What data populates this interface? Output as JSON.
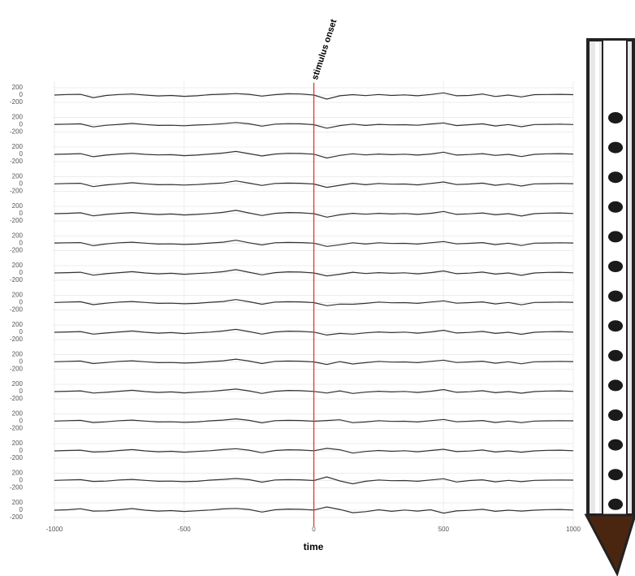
{
  "chart_data": {
    "type": "line",
    "x": [
      -1000,
      -950,
      -900,
      -850,
      -800,
      -750,
      -700,
      -650,
      -600,
      -550,
      -500,
      -450,
      -400,
      -350,
      -300,
      -250,
      -200,
      -150,
      -100,
      -50,
      0,
      50,
      100,
      150,
      200,
      250,
      300,
      350,
      400,
      450,
      500,
      550,
      600,
      650,
      700,
      750,
      800,
      850,
      900,
      950,
      1000
    ],
    "color": "#333333",
    "series": [
      {
        "values": [
          0,
          15,
          20,
          -70,
          -10,
          15,
          30,
          0,
          -25,
          -10,
          -35,
          -20,
          10,
          25,
          40,
          20,
          -30,
          10,
          35,
          30,
          0,
          -110,
          -20,
          10,
          -15,
          15,
          -10,
          5,
          -20,
          15,
          60,
          -20,
          -10,
          30,
          -40,
          0,
          -50,
          10,
          15,
          20,
          10
        ]
      },
      {
        "values": [
          10,
          15,
          25,
          -60,
          -15,
          10,
          35,
          5,
          -20,
          -15,
          -30,
          -10,
          5,
          30,
          60,
          25,
          -40,
          15,
          30,
          25,
          0,
          -95,
          -25,
          15,
          -20,
          10,
          -5,
          0,
          -15,
          20,
          50,
          -25,
          0,
          25,
          -35,
          5,
          -55,
          5,
          10,
          15,
          5
        ]
      },
      {
        "values": [
          0,
          10,
          20,
          -65,
          -20,
          10,
          30,
          0,
          -15,
          -10,
          -35,
          -20,
          10,
          35,
          80,
          20,
          -45,
          10,
          30,
          25,
          5,
          -100,
          -30,
          15,
          -15,
          10,
          -10,
          5,
          -20,
          10,
          60,
          -20,
          -5,
          20,
          -30,
          0,
          -60,
          0,
          15,
          20,
          10
        ]
      },
      {
        "values": [
          5,
          15,
          20,
          -70,
          -25,
          5,
          35,
          5,
          -20,
          -15,
          -30,
          -15,
          10,
          30,
          85,
          25,
          -40,
          15,
          25,
          20,
          0,
          -90,
          -35,
          20,
          -20,
          15,
          -5,
          0,
          -25,
          15,
          55,
          -15,
          0,
          25,
          -35,
          5,
          -55,
          5,
          10,
          15,
          10
        ]
      },
      {
        "values": [
          0,
          10,
          25,
          -60,
          -20,
          10,
          30,
          0,
          -25,
          -10,
          -35,
          -20,
          5,
          35,
          90,
          20,
          -50,
          10,
          30,
          25,
          0,
          -95,
          -30,
          10,
          -15,
          10,
          -10,
          5,
          -20,
          10,
          60,
          -20,
          -5,
          20,
          -30,
          0,
          -65,
          0,
          15,
          20,
          5
        ]
      },
      {
        "values": [
          10,
          15,
          20,
          -65,
          -15,
          15,
          30,
          5,
          -20,
          -15,
          -30,
          -20,
          10,
          30,
          85,
          15,
          -45,
          15,
          25,
          20,
          5,
          -85,
          -40,
          15,
          -20,
          15,
          -5,
          0,
          -20,
          15,
          50,
          -15,
          0,
          20,
          -35,
          5,
          -60,
          5,
          10,
          15,
          10
        ]
      },
      {
        "values": [
          0,
          10,
          20,
          -60,
          -20,
          10,
          35,
          0,
          -25,
          -10,
          -35,
          -15,
          5,
          35,
          90,
          20,
          -50,
          10,
          30,
          25,
          0,
          -80,
          -35,
          20,
          -15,
          10,
          -10,
          5,
          -25,
          10,
          55,
          -20,
          -5,
          25,
          -30,
          0,
          -65,
          0,
          15,
          20,
          5
        ]
      },
      {
        "values": [
          5,
          15,
          25,
          -55,
          -15,
          15,
          30,
          5,
          -20,
          -15,
          -30,
          -20,
          10,
          30,
          85,
          25,
          -45,
          15,
          25,
          20,
          0,
          -85,
          -40,
          -45,
          -20,
          15,
          -5,
          0,
          -20,
          15,
          50,
          -15,
          0,
          20,
          -35,
          5,
          -60,
          5,
          10,
          15,
          10
        ]
      },
      {
        "values": [
          0,
          10,
          20,
          -50,
          -20,
          10,
          35,
          0,
          -25,
          -10,
          -35,
          -15,
          5,
          35,
          80,
          20,
          -50,
          10,
          30,
          25,
          5,
          -75,
          -30,
          -50,
          -15,
          10,
          -10,
          5,
          -25,
          10,
          55,
          -20,
          -5,
          25,
          -30,
          0,
          -55,
          0,
          15,
          20,
          5
        ]
      },
      {
        "values": [
          5,
          15,
          25,
          -45,
          -15,
          15,
          30,
          5,
          -20,
          -15,
          -30,
          -20,
          10,
          30,
          75,
          25,
          -45,
          15,
          25,
          20,
          0,
          -70,
          10,
          -55,
          -20,
          15,
          -5,
          0,
          -20,
          15,
          50,
          -15,
          0,
          20,
          -35,
          5,
          -50,
          5,
          10,
          15,
          10
        ]
      },
      {
        "values": [
          0,
          10,
          20,
          -40,
          -20,
          10,
          35,
          0,
          -25,
          -10,
          -35,
          -15,
          5,
          35,
          70,
          20,
          -50,
          10,
          30,
          25,
          5,
          -40,
          20,
          -50,
          -15,
          10,
          -10,
          5,
          -25,
          10,
          55,
          -20,
          -5,
          25,
          -30,
          0,
          -45,
          0,
          15,
          20,
          5
        ]
      },
      {
        "values": [
          5,
          15,
          25,
          -35,
          -15,
          15,
          30,
          5,
          -20,
          -15,
          -30,
          -20,
          10,
          30,
          65,
          25,
          -45,
          15,
          25,
          20,
          0,
          20,
          40,
          -40,
          -20,
          15,
          -5,
          0,
          -20,
          15,
          50,
          -15,
          0,
          20,
          -35,
          5,
          -40,
          5,
          10,
          15,
          10
        ]
      },
      {
        "values": [
          0,
          10,
          20,
          -30,
          -20,
          10,
          35,
          0,
          -25,
          -10,
          -35,
          -15,
          5,
          35,
          60,
          20,
          -50,
          10,
          30,
          25,
          5,
          70,
          30,
          -60,
          -15,
          10,
          -10,
          5,
          -25,
          10,
          45,
          -20,
          -5,
          25,
          -30,
          0,
          -35,
          0,
          15,
          20,
          5
        ]
      },
      {
        "values": [
          5,
          15,
          25,
          -25,
          -15,
          15,
          30,
          5,
          -20,
          -15,
          -30,
          -20,
          10,
          30,
          55,
          25,
          -45,
          15,
          25,
          20,
          0,
          100,
          -10,
          -90,
          -20,
          15,
          -5,
          0,
          -20,
          15,
          50,
          -40,
          0,
          20,
          -35,
          5,
          -30,
          5,
          10,
          15,
          10
        ]
      },
      {
        "values": [
          0,
          10,
          40,
          -25,
          -20,
          10,
          45,
          0,
          -25,
          -10,
          -35,
          -15,
          5,
          35,
          50,
          20,
          -50,
          10,
          30,
          25,
          5,
          90,
          20,
          -70,
          -40,
          10,
          -30,
          5,
          -25,
          10,
          -80,
          -20,
          -5,
          25,
          -30,
          0,
          -25,
          0,
          15,
          20,
          5
        ]
      }
    ],
    "ylim": [
      -350,
      350
    ],
    "yticks": [
      200,
      0,
      -200
    ],
    "xlim": [
      -1000,
      1000
    ],
    "xticks": [
      -1000,
      -500,
      0,
      500,
      1000
    ],
    "xlabel": "time",
    "annotation": {
      "x": 0,
      "text": "stimulus onset",
      "color": "#e03030"
    },
    "grid": true
  }
}
